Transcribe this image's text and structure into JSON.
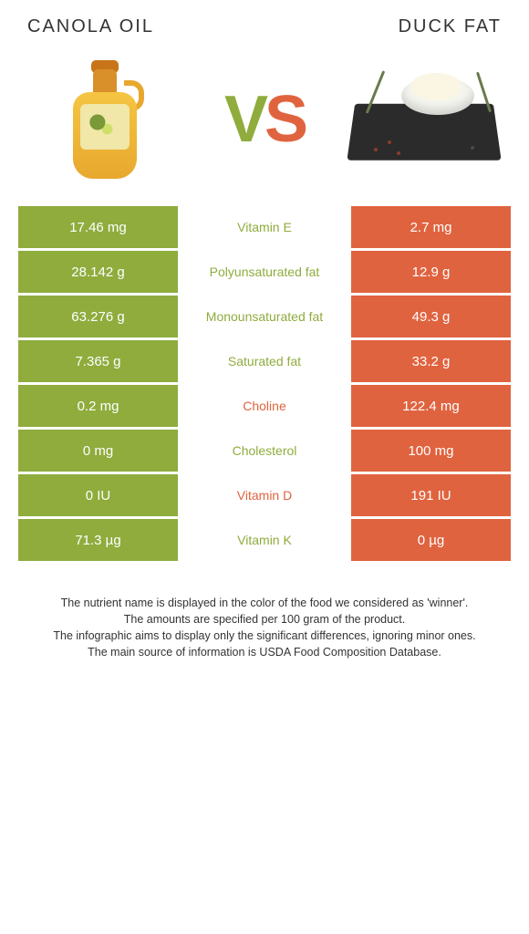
{
  "colors": {
    "left": "#8fac3d",
    "right": "#e0633f",
    "left_text": "#8fac3d",
    "right_text": "#e0633f"
  },
  "header": {
    "left": "CANOLA OIL",
    "right": "DUCK FAT"
  },
  "vs": {
    "v": "V",
    "s": "S"
  },
  "rows": [
    {
      "left": "17.46 mg",
      "label": "Vitamin E",
      "right": "2.7 mg",
      "winner": "left"
    },
    {
      "left": "28.142 g",
      "label": "Polyunsaturated fat",
      "right": "12.9 g",
      "winner": "left"
    },
    {
      "left": "63.276 g",
      "label": "Monounsaturated fat",
      "right": "49.3 g",
      "winner": "left"
    },
    {
      "left": "7.365 g",
      "label": "Saturated fat",
      "right": "33.2 g",
      "winner": "left"
    },
    {
      "left": "0.2 mg",
      "label": "Choline",
      "right": "122.4 mg",
      "winner": "right"
    },
    {
      "left": "0 mg",
      "label": "Cholesterol",
      "right": "100 mg",
      "winner": "left"
    },
    {
      "left": "0 IU",
      "label": "Vitamin D",
      "right": "191 IU",
      "winner": "right"
    },
    {
      "left": "71.3 µg",
      "label": "Vitamin K",
      "right": "0 µg",
      "winner": "left"
    }
  ],
  "footer": {
    "l1": "The nutrient name is displayed in the color of the food we considered as 'winner'.",
    "l2": "The amounts are specified per 100 gram of the product.",
    "l3": "The infographic aims to display only the significant differences, ignoring minor ones.",
    "l4": "The main source of information is USDA Food Composition Database."
  }
}
